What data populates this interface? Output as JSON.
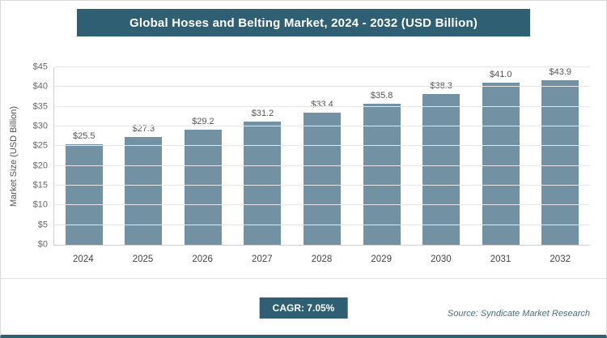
{
  "title": "Global Hoses and Belting Market, 2024 - 2032 (USD Billion)",
  "chart_data": {
    "type": "bar",
    "categories": [
      "2024",
      "2025",
      "2026",
      "2027",
      "2028",
      "2029",
      "2030",
      "2031",
      "2032"
    ],
    "values": [
      25.5,
      27.3,
      29.2,
      31.2,
      33.4,
      35.8,
      38.3,
      41.0,
      43.9
    ],
    "value_labels": [
      "$25.5",
      "$27.3",
      "$29.2",
      "$31.2",
      "$33.4",
      "$35.8",
      "$38.3",
      "$41.0",
      "$43.9"
    ],
    "title": "Global Hoses and Belting Market, 2024 - 2032 (USD Billion)",
    "xlabel": "",
    "ylabel": "Market Size (USD Billion)",
    "ylim": [
      0,
      45
    ],
    "ytick_step": 5,
    "ytick_labels": [
      "$0",
      "$5",
      "$10",
      "$15",
      "$20",
      "$25",
      "$30",
      "$35",
      "$40",
      "$45"
    ],
    "grid": true,
    "legend": "none",
    "bar_color": "#7292a3"
  },
  "footer": {
    "cagr_label": "CAGR: 7.05%",
    "source": "Source: Syndicate Market Research"
  },
  "colors": {
    "title_bg": "#2e5f72",
    "bar": "#7292a3",
    "accent_border": "#2e5f72",
    "gridline": "#e6e6e6"
  }
}
